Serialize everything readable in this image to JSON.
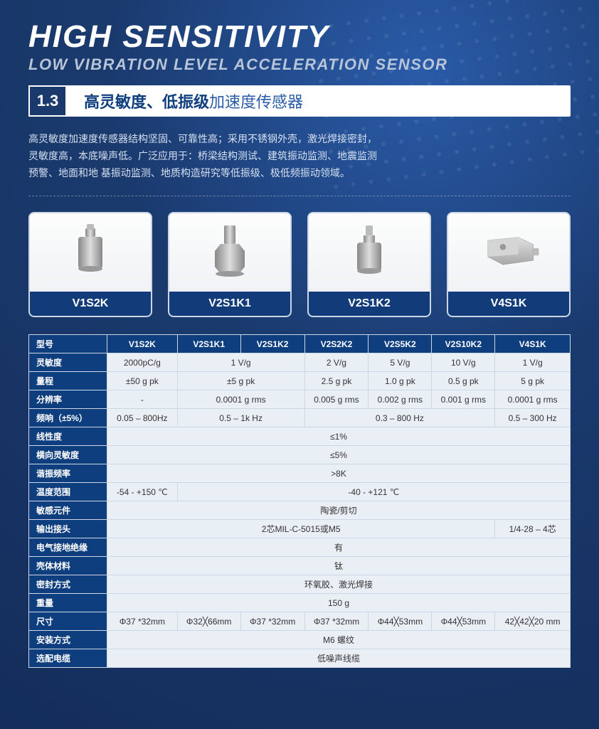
{
  "header": {
    "main_title": "HIGH SENSITIVITY",
    "sub_title": "LOW VIBRATION LEVEL ACCELERATION SENSOR",
    "section_number": "1.3",
    "section_text_bold": "高灵敏度、低振级",
    "section_text_light": "加速度传感器"
  },
  "description": "高灵敏度加速度传感器结构坚固、可靠性高；采用不锈钢外壳，激光焊接密封，\n灵敏度高，本底噪声低。广泛应用于：桥梁结构测试、建筑振动监测、地震监测\n预警、地面和地 基振动监测、地质构造研究等低振级、极低频振动领域。",
  "products": [
    {
      "label": "V1S2K",
      "shape": "cyl"
    },
    {
      "label": "V2S1K1",
      "shape": "hex"
    },
    {
      "label": "V2S1K2",
      "shape": "cyl2"
    },
    {
      "label": "V4S1K",
      "shape": "block"
    }
  ],
  "table": {
    "header_label": "型号",
    "columns": [
      "V1S2K",
      "V2S1K1",
      "V2S1K2",
      "V2S2K2",
      "V2S5K2",
      "V2S10K2",
      "V4S1K"
    ],
    "rows": [
      {
        "label": "灵敏度",
        "cells": [
          {
            "text": "2000pC/g",
            "span": 1
          },
          {
            "text": "1 V/g",
            "span": 2
          },
          {
            "text": "2 V/g",
            "span": 1
          },
          {
            "text": "5 V/g",
            "span": 1
          },
          {
            "text": "10 V/g",
            "span": 1
          },
          {
            "text": "1 V/g",
            "span": 1
          }
        ]
      },
      {
        "label": "量程",
        "cells": [
          {
            "text": "±50 g pk",
            "span": 1
          },
          {
            "text": "±5 g pk",
            "span": 2
          },
          {
            "text": "2.5 g pk",
            "span": 1
          },
          {
            "text": "1.0 g pk",
            "span": 1
          },
          {
            "text": "0.5 g pk",
            "span": 1
          },
          {
            "text": "5 g pk",
            "span": 1
          }
        ]
      },
      {
        "label": "分辨率",
        "cells": [
          {
            "text": "-",
            "span": 1
          },
          {
            "text": "0.0001 g rms",
            "span": 2
          },
          {
            "text": "0.005 g rms",
            "span": 1
          },
          {
            "text": "0.002 g rms",
            "span": 1
          },
          {
            "text": "0.001 g rms",
            "span": 1
          },
          {
            "text": "0.0001 g rms",
            "span": 1
          }
        ]
      },
      {
        "label": "频响（±5%）",
        "cells": [
          {
            "text": "0.05 – 800Hz",
            "span": 1
          },
          {
            "text": "0.5 – 1k Hz",
            "span": 2
          },
          {
            "text": "0.3 – 800 Hz",
            "span": 3
          },
          {
            "text": "0.5 – 300 Hz",
            "span": 1
          }
        ]
      },
      {
        "label": "线性度",
        "cells": [
          {
            "text": "≤1%",
            "span": 7
          }
        ]
      },
      {
        "label": "横向灵敏度",
        "cells": [
          {
            "text": "≤5%",
            "span": 7
          }
        ]
      },
      {
        "label": "谐振频率",
        "cells": [
          {
            "text": ">8K",
            "span": 7
          }
        ]
      },
      {
        "label": "温度范围",
        "cells": [
          {
            "text": "-54 - +150 ℃",
            "span": 1
          },
          {
            "text": "-40 - +121 ℃",
            "span": 6
          }
        ]
      },
      {
        "label": "敏感元件",
        "cells": [
          {
            "text": "陶瓷/剪切",
            "span": 7
          }
        ]
      },
      {
        "label": "输出接头",
        "cells": [
          {
            "text": "2芯MIL-C-5015或M5",
            "span": 6
          },
          {
            "text": "1/4-28 – 4芯",
            "span": 1
          }
        ]
      },
      {
        "label": "电气接地绝缘",
        "cells": [
          {
            "text": "有",
            "span": 7
          }
        ]
      },
      {
        "label": "壳体材料",
        "cells": [
          {
            "text": "钛",
            "span": 7
          }
        ]
      },
      {
        "label": "密封方式",
        "cells": [
          {
            "text": "环氧胶、激光焊接",
            "span": 7
          }
        ]
      },
      {
        "label": "重量",
        "cells": [
          {
            "text": "150 g",
            "span": 7
          }
        ]
      },
      {
        "label": "尺寸",
        "cells": [
          {
            "text": "Φ37 *32mm",
            "span": 1
          },
          {
            "text": "Φ32╳66mm",
            "span": 1
          },
          {
            "text": "Φ37 *32mm",
            "span": 1
          },
          {
            "text": "Φ37 *32mm",
            "span": 1
          },
          {
            "text": "Φ44╳53mm",
            "span": 1
          },
          {
            "text": "Φ44╳53mm",
            "span": 1
          },
          {
            "text": "42╳42╳20 mm",
            "span": 1
          }
        ]
      },
      {
        "label": "安装方式",
        "cells": [
          {
            "text": "M6 螺纹",
            "span": 7
          }
        ]
      },
      {
        "label": "选配电缆",
        "cells": [
          {
            "text": "低噪声线缆",
            "span": 7
          }
        ]
      }
    ]
  },
  "colors": {
    "header_bg": "#0e3e7e",
    "data_bg": "#eaeef5",
    "border": "#cdd6e4",
    "page_accent": "#1a3a6e"
  }
}
